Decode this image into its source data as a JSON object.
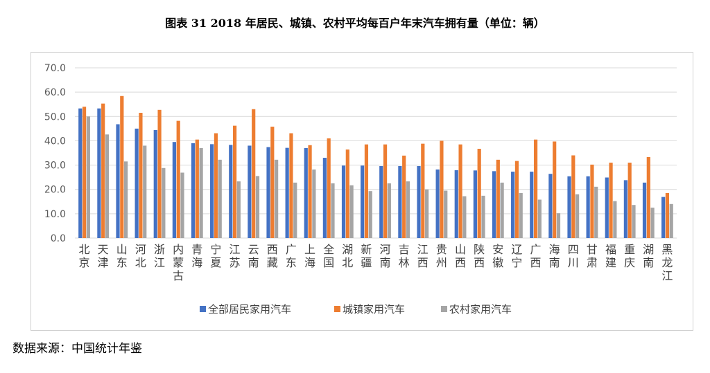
{
  "title": "图表 31 2018 年居民、城镇、农村平均每百户年末汽车拥有量（单位：辆）",
  "source": "数据来源：中国统计年鉴",
  "colors": {
    "series": [
      "#4472c4",
      "#ed7d31",
      "#a5a5a5"
    ],
    "grid": "#d9d9d9",
    "axis_text": "#595959"
  },
  "chart_data": {
    "type": "bar",
    "ylim": [
      0,
      70
    ],
    "yticks": [
      "0.0",
      "10.0",
      "20.0",
      "30.0",
      "40.0",
      "50.0",
      "60.0",
      "70.0"
    ],
    "grid": true,
    "legend_position": "bottom",
    "categories": [
      "北京",
      "天津",
      "山东",
      "河北",
      "浙江",
      "内蒙古",
      "青海",
      "宁夏",
      "江苏",
      "云南",
      "西藏",
      "广东",
      "上海",
      "全国",
      "湖北",
      "新疆",
      "河南",
      "吉林",
      "江西",
      "贵州",
      "山西",
      "陕西",
      "安徽",
      "辽宁",
      "广西",
      "海南",
      "四川",
      "甘肃",
      "福建",
      "重庆",
      "湖南",
      "黑龙江"
    ],
    "series": [
      {
        "name": "全部居民家用汽车",
        "values": [
          53.3,
          53.3,
          46.8,
          45.0,
          44.4,
          39.5,
          39.0,
          38.6,
          38.3,
          38.0,
          37.4,
          37.1,
          37.0,
          33.0,
          29.8,
          29.8,
          29.6,
          29.6,
          29.6,
          28.2,
          27.9,
          27.8,
          27.5,
          27.3,
          27.3,
          26.4,
          25.4,
          25.4,
          24.9,
          23.8,
          22.8,
          16.9
        ]
      },
      {
        "name": "城镇家用汽车",
        "values": [
          54.0,
          55.3,
          58.4,
          51.5,
          52.7,
          48.2,
          40.5,
          43.1,
          46.2,
          53.0,
          45.8,
          43.1,
          38.2,
          41.0,
          36.4,
          38.5,
          38.5,
          33.9,
          38.8,
          40.0,
          38.5,
          36.7,
          32.2,
          31.7,
          40.5,
          39.7,
          34.0,
          30.2,
          31.0,
          31.0,
          33.3,
          18.5
        ]
      },
      {
        "name": "农村家用汽车",
        "values": [
          50.0,
          42.6,
          31.5,
          38.0,
          28.8,
          26.9,
          37.0,
          32.2,
          23.3,
          25.5,
          32.2,
          22.8,
          28.2,
          22.5,
          21.7,
          19.3,
          22.5,
          23.3,
          20.0,
          19.5,
          17.2,
          17.4,
          22.8,
          18.5,
          15.8,
          10.2,
          18.0,
          21.1,
          15.2,
          13.6,
          12.5,
          14.0
        ]
      }
    ]
  }
}
